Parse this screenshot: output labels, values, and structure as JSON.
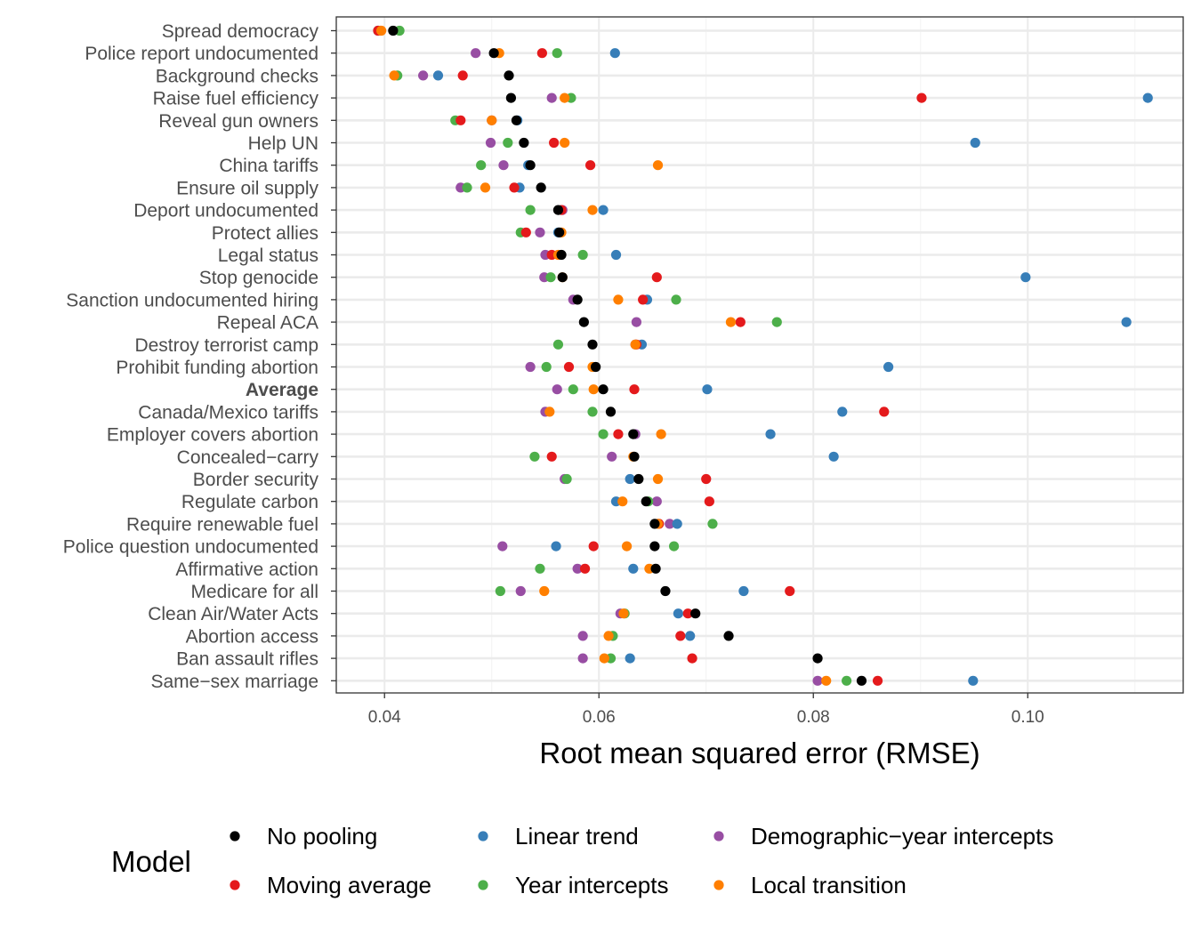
{
  "chart_data": {
    "type": "scatter",
    "title": "",
    "xlabel": "Root mean squared error (RMSE)",
    "ylabel": "",
    "xlim": [
      0.0355,
      0.1145
    ],
    "xticks": [
      0.04,
      0.06,
      0.08,
      0.1
    ],
    "xtick_labels": [
      "0.04",
      "0.06",
      "0.08",
      "0.10"
    ],
    "grid": true,
    "legend_title": "Model",
    "legend_position": "bottom",
    "bold_category": "Average",
    "categories": [
      "Spread democracy",
      "Police report undocumented",
      "Background checks",
      "Raise fuel efficiency",
      "Reveal gun owners",
      "Help UN",
      "China tariffs",
      "Ensure oil supply",
      "Deport undocumented",
      "Protect allies",
      "Legal status",
      "Stop genocide",
      "Sanction undocumented hiring",
      "Repeal ACA",
      "Destroy terrorist camp",
      "Prohibit funding abortion",
      "Average",
      "Canada/Mexico tariffs",
      "Employer covers abortion",
      "Concealed−carry",
      "Border security",
      "Regulate carbon",
      "Require renewable fuel",
      "Police question undocumented",
      "Affirmative action",
      "Medicare for all",
      "Clean Air/Water Acts",
      "Abortion access",
      "Ban assault rifles",
      "Same−sex marriage"
    ],
    "series": [
      {
        "name": "Demographic−year intercepts",
        "color": "#984EA3",
        "values": [
          0.0396,
          0.0485,
          0.0436,
          0.0556,
          0.05,
          0.0499,
          0.0511,
          0.0471,
          0.0566,
          0.0545,
          0.055,
          0.0549,
          0.0576,
          0.0635,
          0.0634,
          0.0536,
          0.0561,
          0.055,
          0.0634,
          0.0612,
          0.0568,
          0.0654,
          0.0666,
          0.051,
          0.058,
          0.0527,
          0.062,
          0.0585,
          0.0585,
          0.0804
        ]
      },
      {
        "name": "Linear trend",
        "color": "#377EB8",
        "values": [
          0.0394,
          0.0615,
          0.045,
          0.1112,
          0.0524,
          0.0951,
          0.0534,
          0.0526,
          0.0604,
          0.0562,
          0.0616,
          0.0998,
          0.0645,
          0.1092,
          0.064,
          0.087,
          0.0701,
          0.0827,
          0.076,
          0.0819,
          0.0629,
          0.0616,
          0.0673,
          0.056,
          0.0632,
          0.0735,
          0.0674,
          0.0685,
          0.0629,
          0.0949
        ]
      },
      {
        "name": "Year intercepts",
        "color": "#4DAF4A",
        "values": [
          0.0414,
          0.0561,
          0.0412,
          0.0574,
          0.0466,
          0.0515,
          0.049,
          0.0477,
          0.0536,
          0.0527,
          0.0585,
          0.0555,
          0.0672,
          0.0766,
          0.0562,
          0.0551,
          0.0576,
          0.0594,
          0.0604,
          0.054,
          0.057,
          0.0646,
          0.0706,
          0.067,
          0.0545,
          0.0508,
          0.0624,
          0.0613,
          0.0611,
          0.0831
        ]
      },
      {
        "name": "Moving average",
        "color": "#E41A1C",
        "values": [
          0.0394,
          0.0547,
          0.0473,
          0.0901,
          0.0471,
          0.0558,
          0.0592,
          0.0521,
          0.0565,
          0.0532,
          0.0556,
          0.0654,
          0.0641,
          0.0732,
          0.0635,
          0.0572,
          0.0633,
          0.0866,
          0.0618,
          0.0556,
          0.07,
          0.0703,
          0.0656,
          0.0595,
          0.0587,
          0.0778,
          0.0683,
          0.0676,
          0.0687,
          0.086
        ]
      },
      {
        "name": "Local transition",
        "color": "#FF7F00",
        "values": [
          0.0397,
          0.0507,
          0.0409,
          0.0568,
          0.05,
          0.0568,
          0.0655,
          0.0494,
          0.0594,
          0.0565,
          0.0562,
          0.0566,
          0.0618,
          0.0723,
          0.0634,
          0.0594,
          0.0595,
          0.0554,
          0.0658,
          0.0632,
          0.0655,
          0.0622,
          0.0655,
          0.0626,
          0.0647,
          0.0549,
          0.0623,
          0.0609,
          0.0605,
          0.0812
        ]
      },
      {
        "name": "No pooling",
        "color": "#000000",
        "values": [
          0.0408,
          0.0502,
          0.0516,
          0.0518,
          0.0523,
          0.053,
          0.0536,
          0.0546,
          0.0562,
          0.0563,
          0.0565,
          0.0566,
          0.058,
          0.0586,
          0.0594,
          0.0597,
          0.0604,
          0.0611,
          0.0632,
          0.0633,
          0.0637,
          0.0644,
          0.0652,
          0.0652,
          0.0653,
          0.0662,
          0.069,
          0.0721,
          0.0804,
          0.0845
        ]
      }
    ],
    "legend": [
      {
        "name": "No pooling",
        "color": "#000000"
      },
      {
        "name": "Moving average",
        "color": "#E41A1C"
      },
      {
        "name": "Linear trend",
        "color": "#377EB8"
      },
      {
        "name": "Year intercepts",
        "color": "#4DAF4A"
      },
      {
        "name": "Demographic−year intercepts",
        "color": "#984EA3"
      },
      {
        "name": "Local transition",
        "color": "#FF7F00"
      }
    ]
  }
}
